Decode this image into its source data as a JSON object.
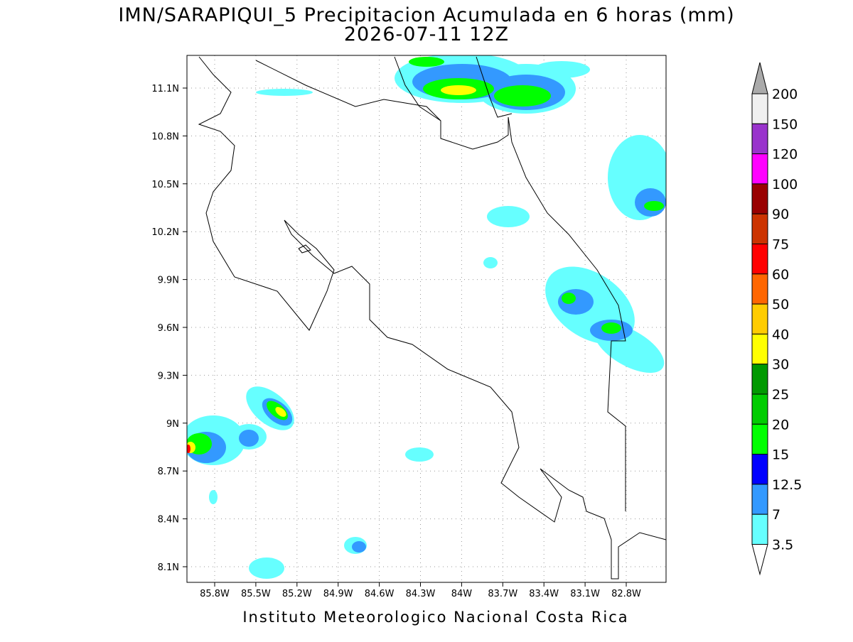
{
  "header": {
    "title": "IMN/SARAPIQUI_5 Precipitacion Acumulada en 6 horas (mm)",
    "subtitle": "2026-07-11 12Z"
  },
  "map": {
    "lat_labels": [
      "11.1N",
      "10.8N",
      "10.5N",
      "10.2N",
      "9.9N",
      "9.6N",
      "9.3N",
      "9N",
      "8.7N",
      "8.4N",
      "8.1N"
    ],
    "lon_labels": [
      "85.8W",
      "85.5W",
      "85.2W",
      "84.9W",
      "84.6W",
      "84.3W",
      "84W",
      "83.7W",
      "83.4W",
      "83.1W",
      "82.8W"
    ]
  },
  "colorbar": {
    "levels": [
      200,
      150,
      120,
      100,
      90,
      75,
      60,
      50,
      40,
      30,
      25,
      20,
      15,
      12.5,
      7,
      3.5
    ],
    "colors": [
      "#aaaaaa",
      "#f0f0f0",
      "#9933cc",
      "#ff00ff",
      "#990000",
      "#cc3300",
      "#ff0000",
      "#ff6600",
      "#ffcc00",
      "#ffff00",
      "#009900",
      "#00cc00",
      "#00ff00",
      "#0000ff",
      "#3399ff",
      "#66ffff",
      "#ffffff"
    ]
  },
  "footer": "Instituto Meteorologico Nacional Costa Rica"
}
